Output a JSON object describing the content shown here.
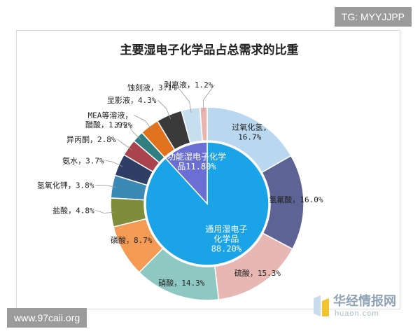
{
  "tags": {
    "top": "TG: MYYJJPP",
    "bottom": "www.97caii.org"
  },
  "watermark": {
    "cn": "华经情报网",
    "en": "huaon.com"
  },
  "chart_data": {
    "type": "pie",
    "style": "nested donut",
    "title": "主要湿电子化学品占总需求的比重",
    "inner": [
      {
        "name": "通用湿电子\n化学品",
        "value_text": "88.20%",
        "value": 88.2,
        "color": "#1aa3e6"
      },
      {
        "name": "功能湿电子化学\n品",
        "value_text": "11.80%",
        "value": 11.8,
        "color": "#6b6fd3"
      }
    ],
    "outer": [
      {
        "name": "过氧化氢",
        "value_text": "16.7%",
        "value": 16.7,
        "color": "#b9d7ee"
      },
      {
        "name": "氢氟酸",
        "value_text": "16.0%",
        "value": 16.0,
        "color": "#5d6495"
      },
      {
        "name": "硫酸",
        "value_text": "15.3%",
        "value": 15.3,
        "color": "#e6b7b3"
      },
      {
        "name": "硝酸",
        "value_text": "14.3%",
        "value": 14.3,
        "color": "#8fc8c2"
      },
      {
        "name": "磷酸",
        "value_text": "8.7%",
        "value": 8.7,
        "color": "#f39a55"
      },
      {
        "name": "盐酸",
        "value_text": "4.8%",
        "value": 4.8,
        "color": "#7f8d3a"
      },
      {
        "name": "氢氧化钾",
        "value_text": "3.8%",
        "value": 3.8,
        "color": "#3b8ab5"
      },
      {
        "name": "氨水",
        "value_text": "3.7%",
        "value": 3.7,
        "color": "#2f3e64"
      },
      {
        "name": "异丙酮",
        "value_text": "2.8%",
        "value": 2.8,
        "color": "#a9434c"
      },
      {
        "name": "醋酸",
        "value_text": "1.9%",
        "value": 1.9,
        "color": "#2f7f80"
      },
      {
        "name": "MEA等溶液",
        "value_text": "3.2%",
        "value": 3.2,
        "color": "#e1731f"
      },
      {
        "name": "显影液",
        "value_text": "4.3%",
        "value": 4.3,
        "color": "#3a3a3a"
      },
      {
        "name": "蚀刻液",
        "value_text": "3.1%",
        "value": 3.1,
        "color": "#c5dff0"
      },
      {
        "name": "剥离液",
        "value_text": "1.2%",
        "value": 1.2,
        "color": "#e9b4b0"
      }
    ]
  }
}
